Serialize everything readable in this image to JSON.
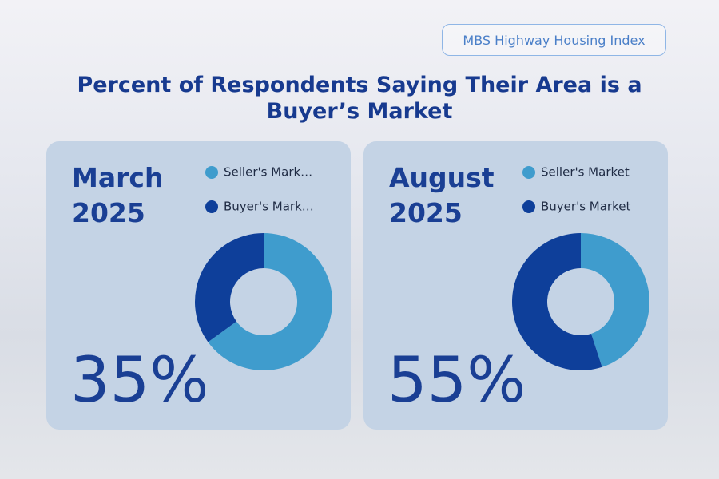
{
  "badge": "MBS Highway Housing Index",
  "title": "Percent of Respondents Saying Their Area is a Buyer’s Market",
  "chart_data": [
    {
      "type": "donut",
      "title": "March 2025",
      "categories": [
        "Seller's Mark…",
        "Buyer's Mark…"
      ],
      "values": [
        65,
        35
      ],
      "value_labels": [
        null,
        "35%"
      ],
      "colors": [
        "#3f9ccd",
        "#0e3f9a"
      ]
    },
    {
      "type": "donut",
      "title": "August 2025",
      "categories": [
        "Seller's Market",
        "Buyer's Market"
      ],
      "values": [
        45,
        55
      ],
      "value_labels": [
        null,
        "55%"
      ],
      "colors": [
        "#3f9ccd",
        "#0e3f9a"
      ]
    }
  ]
}
